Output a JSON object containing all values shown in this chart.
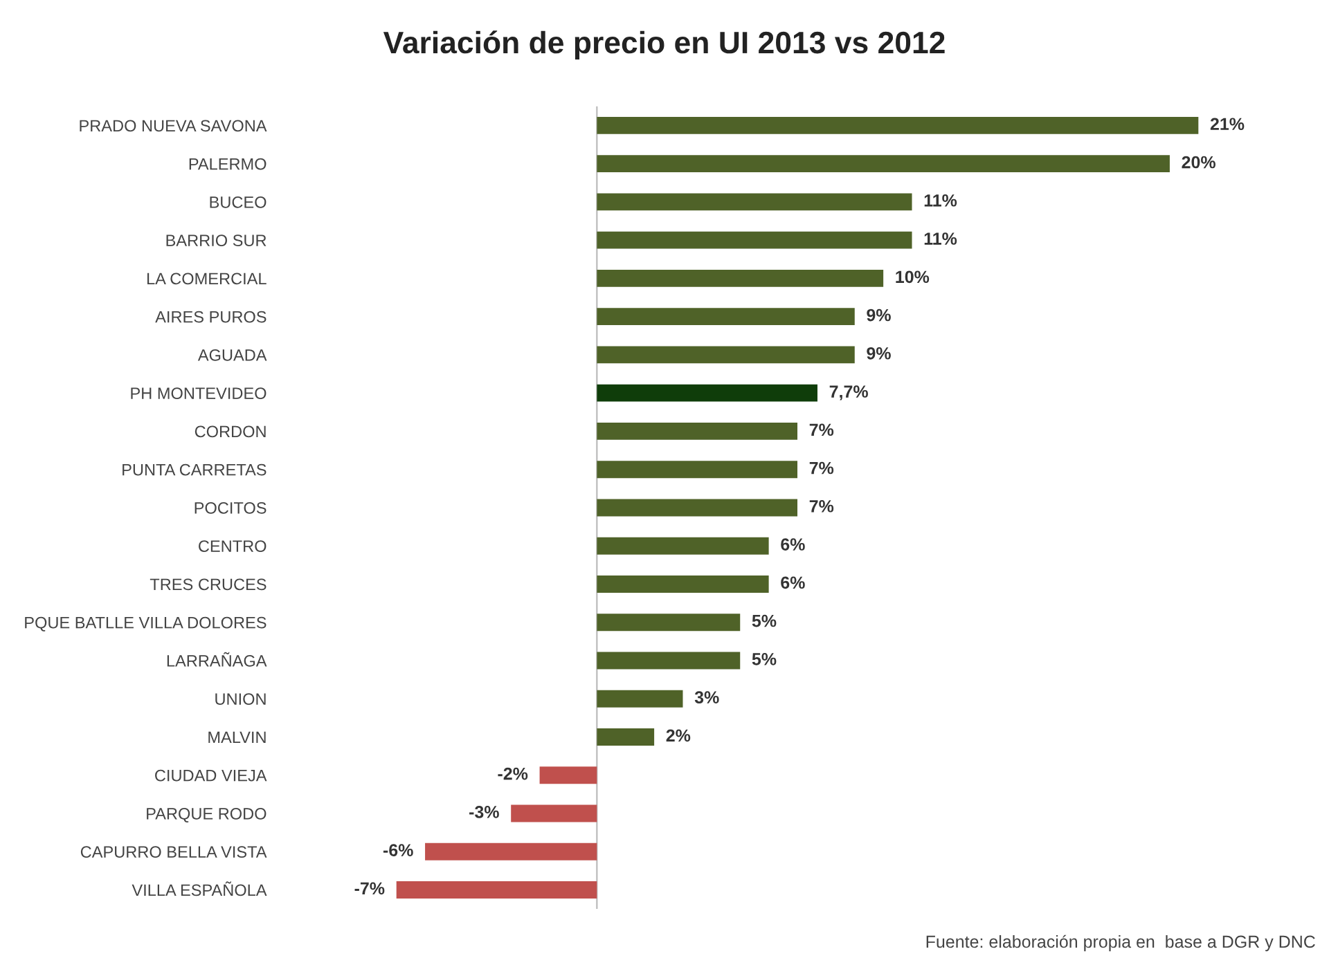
{
  "chart_data": {
    "type": "bar",
    "orientation": "horizontal",
    "title": "Variación de precio en UI 2013 vs 2012",
    "categories": [
      "PRADO NUEVA SAVONA",
      "PALERMO",
      "BUCEO",
      "BARRIO SUR",
      "LA COMERCIAL",
      "AIRES PUROS",
      "AGUADA",
      "PH MONTEVIDEO",
      "CORDON",
      "PUNTA CARRETAS",
      "POCITOS",
      "CENTRO",
      "TRES CRUCES",
      "PQUE BATLLE VILLA DOLORES",
      "LARRAÑAGA",
      "UNION",
      "MALVIN",
      "CIUDAD VIEJA",
      "PARQUE RODO",
      "CAPURRO BELLA VISTA",
      "VILLA ESPAÑOLA"
    ],
    "values": [
      21,
      20,
      11,
      11,
      10,
      9,
      9,
      7.7,
      7,
      7,
      7,
      6,
      6,
      5,
      5,
      3,
      2,
      -2,
      -3,
      -6,
      -7
    ],
    "value_labels": [
      "21%",
      "20%",
      "11%",
      "11%",
      "10%",
      "9%",
      "9%",
      "7,7%",
      "7%",
      "7%",
      "7%",
      "6%",
      "6%",
      "5%",
      "5%",
      "3%",
      "2%",
      "-2%",
      "-3%",
      "-6%",
      "-7%"
    ],
    "colors": [
      "#4f6228",
      "#4f6228",
      "#4f6228",
      "#4f6228",
      "#4f6228",
      "#4f6228",
      "#4f6228",
      "#0f3d0a",
      "#4f6228",
      "#4f6228",
      "#4f6228",
      "#4f6228",
      "#4f6228",
      "#4f6228",
      "#4f6228",
      "#4f6228",
      "#4f6228",
      "#c0504d",
      "#c0504d",
      "#c0504d",
      "#c0504d"
    ],
    "tick_labels": "y",
    "grid": false,
    "annotations": [
      "Fuente: elaboración propia en  base a DGR y DNC"
    ]
  }
}
